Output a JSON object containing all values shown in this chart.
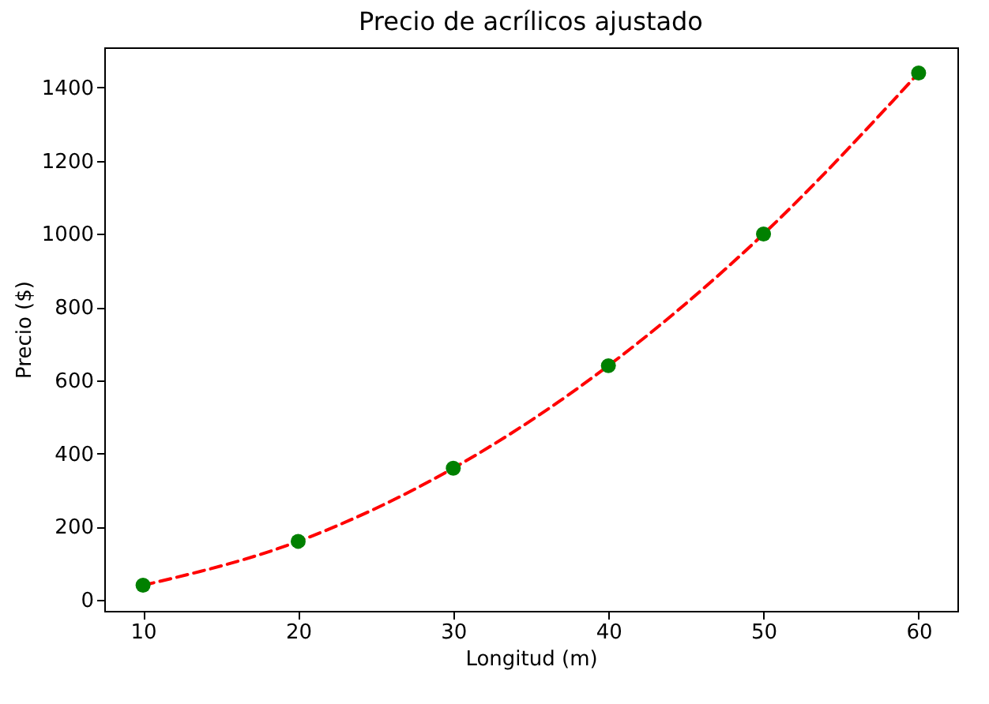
{
  "chart_data": {
    "type": "line",
    "title": "Precio de acrílicos ajustado",
    "xlabel": "Longitud (m)",
    "ylabel": "Precio ($)",
    "x": [
      10,
      20,
      30,
      40,
      50,
      60
    ],
    "series": [
      {
        "color": "#ff0000",
        "line_style": "dashed",
        "marker": "none",
        "values": [
          40,
          160,
          360,
          640,
          1000,
          1440
        ]
      },
      {
        "type": "scatter",
        "color": "#008000",
        "marker": "circle",
        "values": [
          40,
          160,
          360,
          640,
          1000,
          1440
        ]
      }
    ],
    "xlim": [
      7.5,
      62.5
    ],
    "xticks": [
      10,
      20,
      30,
      40,
      50,
      60
    ],
    "ylim": [
      -30,
      1510
    ],
    "yticks": [
      0,
      200,
      400,
      600,
      800,
      1000,
      1200,
      1400
    ],
    "grid": false
  }
}
